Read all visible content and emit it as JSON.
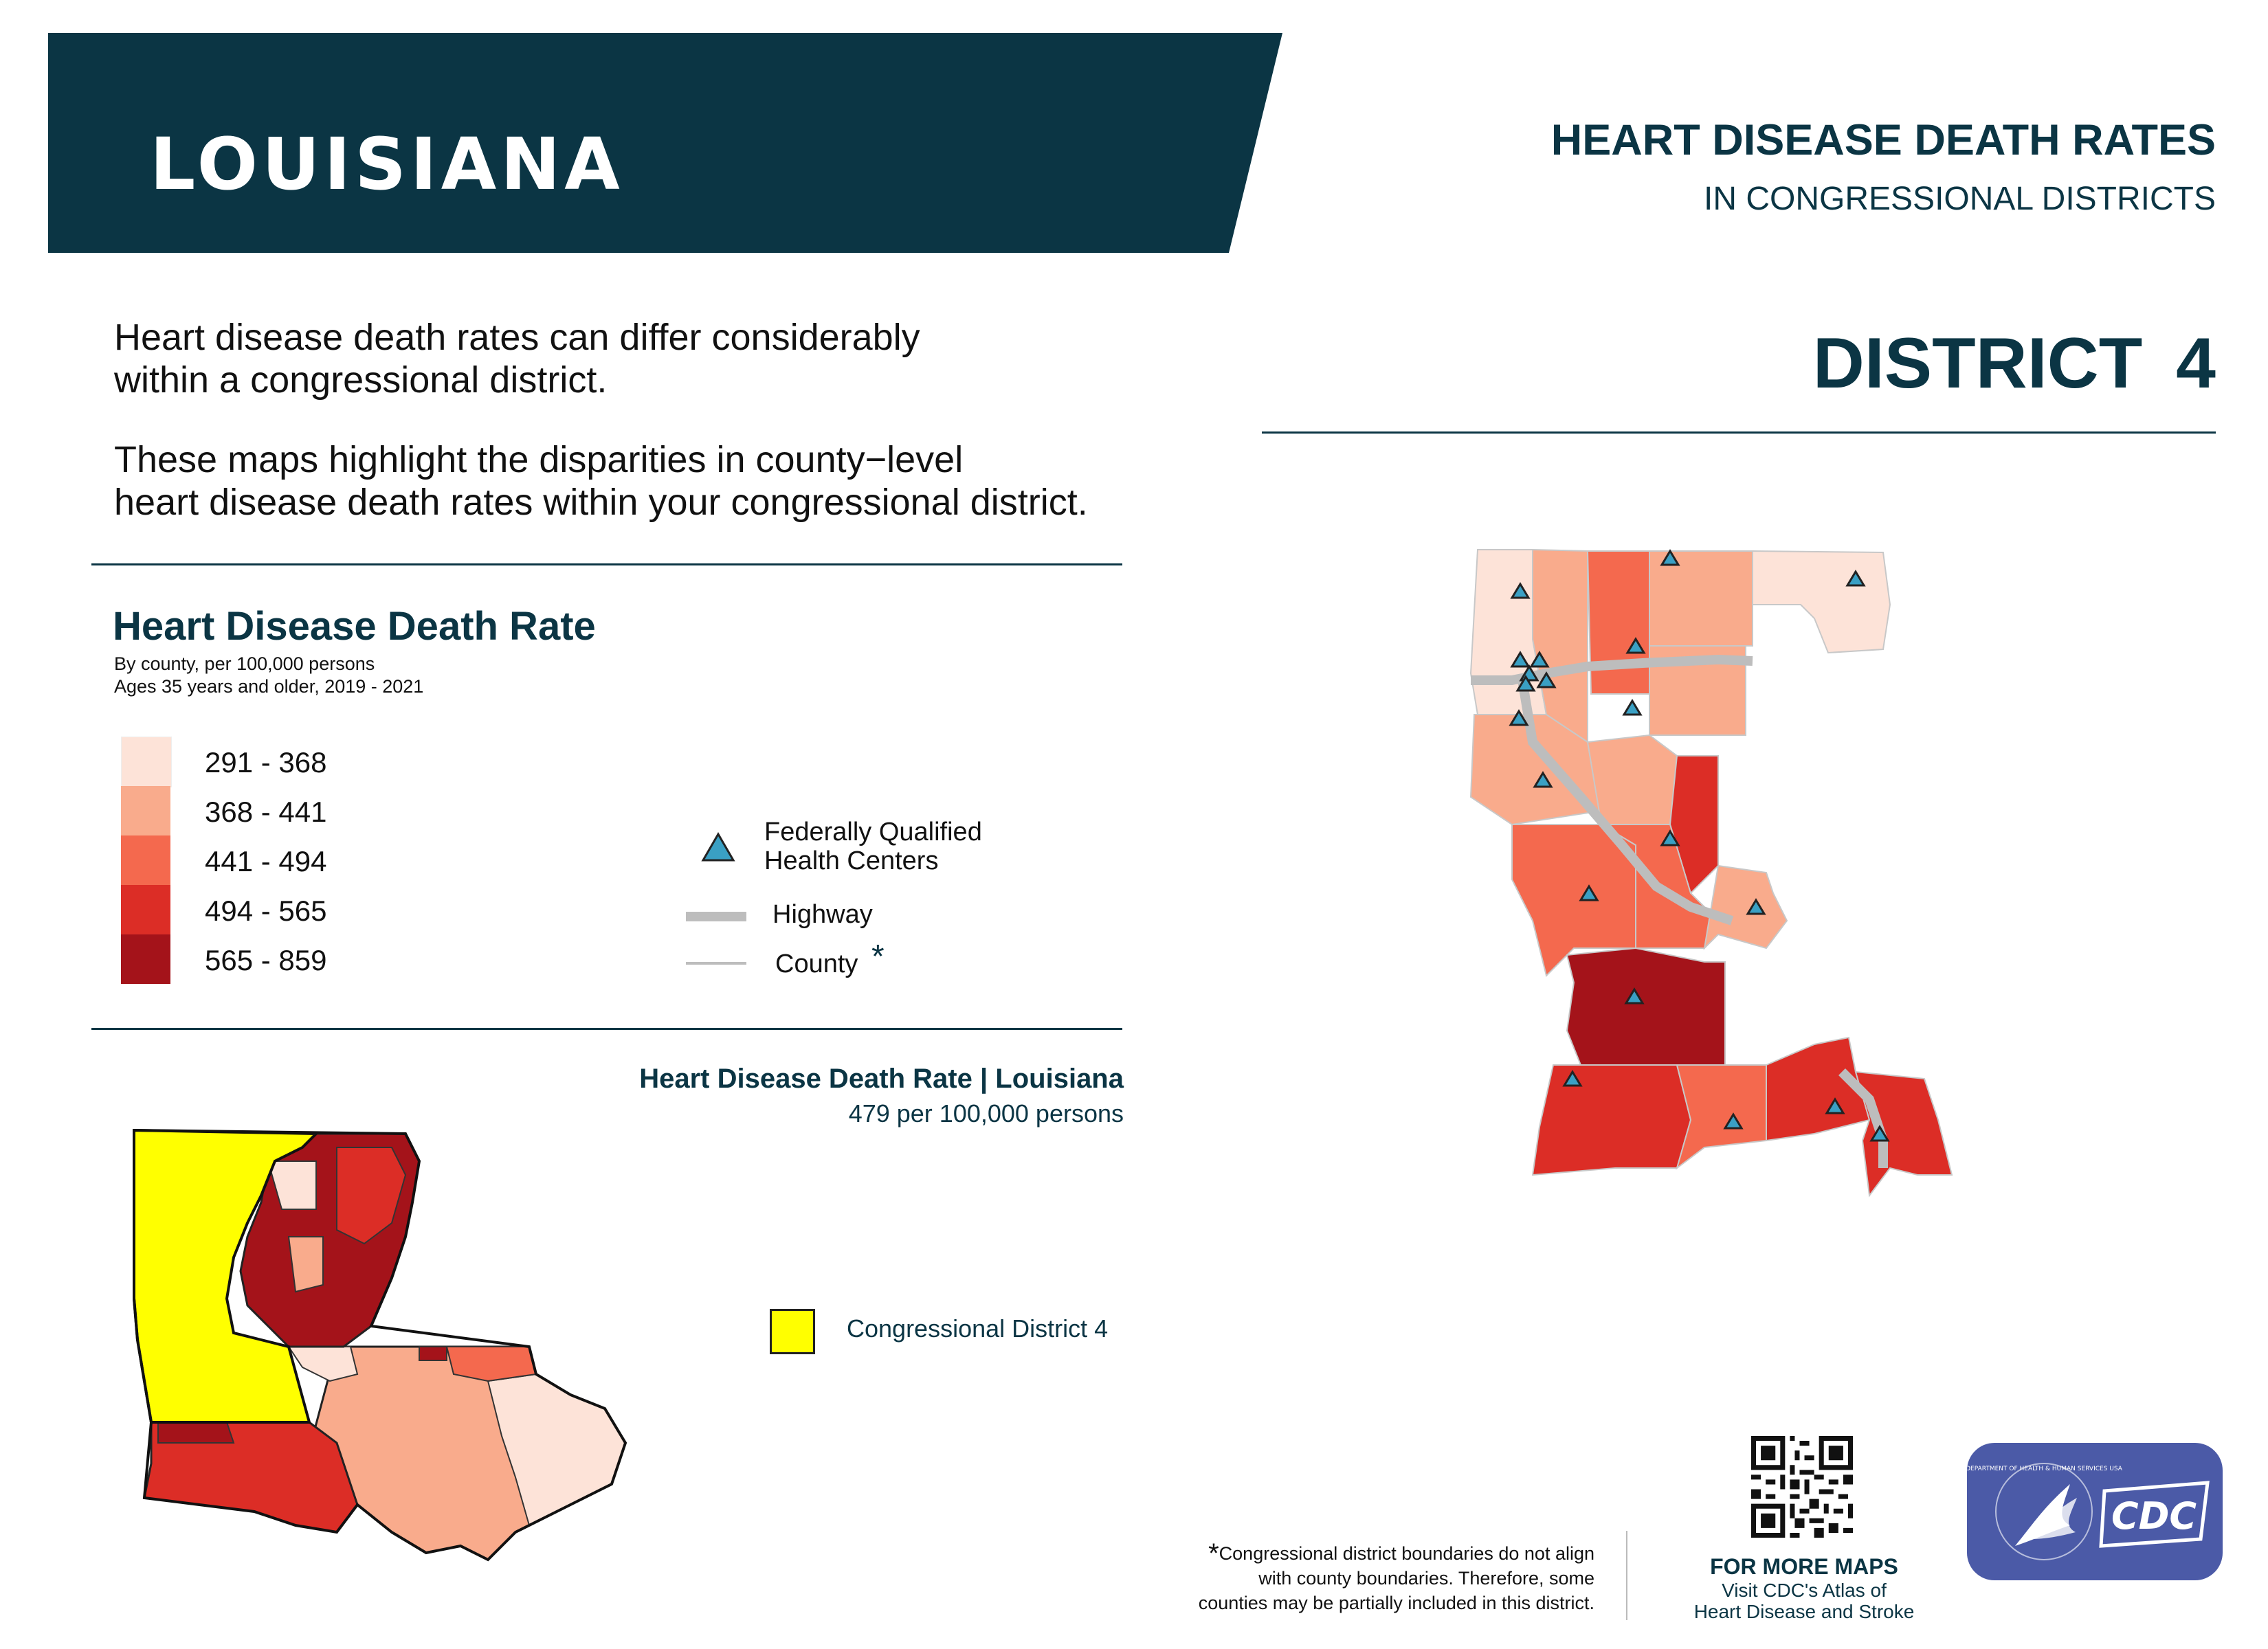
{
  "header": {
    "state_name": "LOUISIANA",
    "report_title": "HEART DISEASE DEATH RATES",
    "report_subtitle": "IN CONGRESSIONAL DISTRICTS",
    "district_title": "DISTRICT  4",
    "banner_color": "#0b3544"
  },
  "intro": {
    "line1": "Heart disease death rates can differ considerably",
    "line2": "within a congressional district.",
    "line3": "These maps highlight the disparities in county−level",
    "line4": "heart disease death rates within your congressional district."
  },
  "legend": {
    "title": "Heart Disease Death Rate",
    "subtitle1": "By county, per 100,000 persons",
    "subtitle2": "Ages 35 years and older, 2019 - 2021",
    "bins": [
      {
        "label": "291 - 368",
        "color": "#fde3d8"
      },
      {
        "label": "368 - 441",
        "color": "#f9ab8c"
      },
      {
        "label": "441 - 494",
        "color": "#f4694e"
      },
      {
        "label": "494 - 565",
        "color": "#dc2d26"
      },
      {
        "label": "565 - 859",
        "color": "#a4131a"
      }
    ],
    "fqhc_label_1": "Federally Qualified",
    "fqhc_label_2": "Health Centers",
    "fqhc_color": "#3aa0c4",
    "highway_label": "Highway",
    "county_label": "County",
    "county_asterisk": "*",
    "highway_color": "#bdbdbd"
  },
  "state_summary": {
    "title": "Heart Disease Death Rate | Louisiana",
    "value": "479 per 100,000 persons"
  },
  "overview_legend": {
    "label": "Congressional District 4",
    "color": "#ffff00"
  },
  "footer": {
    "asterisk": "*",
    "note1": "Congressional district boundaries do not align",
    "note2": "with county boundaries. Therefore, some",
    "note3": "counties may be partially included in this district.",
    "more_maps": "FOR MORE MAPS",
    "visit1": "Visit CDC's Atlas of",
    "visit2": "Heart Disease and Stroke",
    "cdc_text": "CDC",
    "hhs_text": "DEPARTMENT OF HEALTH & HUMAN SERVICES USA",
    "cdc_box_color": "#4b5aa7"
  }
}
